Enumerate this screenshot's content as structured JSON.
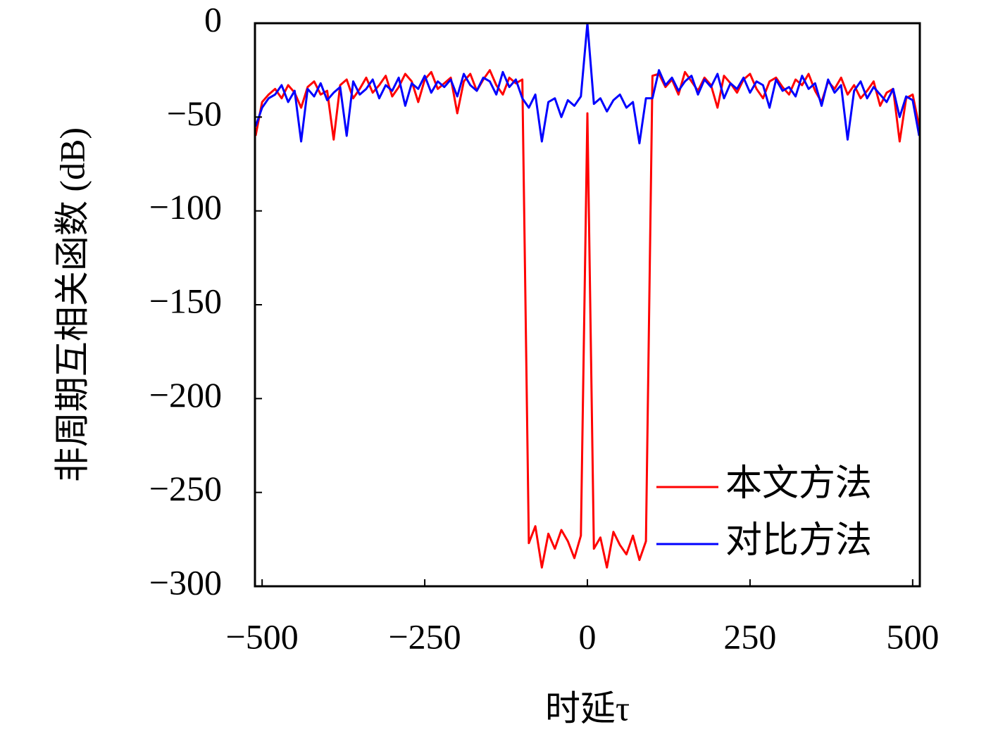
{
  "chart_data": {
    "type": "line",
    "xlabel": "时延τ",
    "ylabel": "非周期互相关函数 (dB)",
    "x": [
      -510,
      -500,
      -490,
      -480,
      -470,
      -460,
      -450,
      -440,
      -430,
      -420,
      -410,
      -400,
      -390,
      -380,
      -370,
      -360,
      -350,
      -340,
      -330,
      -320,
      -310,
      -300,
      -290,
      -280,
      -270,
      -260,
      -250,
      -240,
      -230,
      -220,
      -210,
      -200,
      -190,
      -180,
      -170,
      -160,
      -150,
      -140,
      -130,
      -120,
      -110,
      -100,
      -90,
      -80,
      -70,
      -60,
      -50,
      -40,
      -30,
      -20,
      -10,
      0,
      10,
      20,
      30,
      40,
      50,
      60,
      70,
      80,
      90,
      100,
      110,
      120,
      130,
      140,
      150,
      160,
      170,
      180,
      190,
      200,
      210,
      220,
      230,
      240,
      250,
      260,
      270,
      280,
      290,
      300,
      310,
      320,
      330,
      340,
      350,
      360,
      370,
      380,
      390,
      400,
      410,
      420,
      430,
      440,
      450,
      460,
      470,
      480,
      490,
      500,
      510
    ],
    "series": [
      {
        "name": "本文方法",
        "color": "#ff0000",
        "values": [
          -60,
          -42,
          -38,
          -35,
          -40,
          -33,
          -37,
          -45,
          -34,
          -31,
          -38,
          -36,
          -62,
          -33,
          -30,
          -40,
          -35,
          -29,
          -37,
          -33,
          -28,
          -39,
          -34,
          -27,
          -31,
          -42,
          -30,
          -26,
          -35,
          -32,
          -29,
          -48,
          -31,
          -27,
          -36,
          -30,
          -25,
          -33,
          -38,
          -29,
          -32,
          -30,
          -277,
          -268,
          -290,
          -272,
          -280,
          -270,
          -276,
          -285,
          -273,
          -48,
          -280,
          -274,
          -290,
          -271,
          -278,
          -283,
          -273,
          -286,
          -276,
          -28,
          -27,
          -34,
          -30,
          -38,
          -26,
          -31,
          -36,
          -29,
          -33,
          -45,
          -28,
          -32,
          -37,
          -30,
          -27,
          -35,
          -40,
          -31,
          -29,
          -34,
          -38,
          -30,
          -33,
          -27,
          -36,
          -42,
          -31,
          -35,
          -29,
          -38,
          -33,
          -40,
          -36,
          -31,
          -44,
          -37,
          -35,
          -63,
          -40,
          -38,
          -55
        ]
      },
      {
        "name": "对比方法",
        "color": "#0000ff",
        "values": [
          -55,
          -45,
          -40,
          -38,
          -33,
          -42,
          -36,
          -63,
          -35,
          -39,
          -32,
          -41,
          -37,
          -34,
          -60,
          -31,
          -38,
          -35,
          -30,
          -40,
          -33,
          -36,
          -29,
          -44,
          -32,
          -35,
          -28,
          -37,
          -31,
          -34,
          -30,
          -39,
          -27,
          -33,
          -36,
          -29,
          -31,
          -38,
          -26,
          -34,
          -30,
          -40,
          -45,
          -38,
          -63,
          -42,
          -40,
          -50,
          -41,
          -44,
          -39,
          0,
          -43,
          -40,
          -47,
          -41,
          -38,
          -45,
          -42,
          -64,
          -40,
          -40,
          -25,
          -33,
          -29,
          -36,
          -31,
          -28,
          -38,
          -30,
          -34,
          -27,
          -40,
          -32,
          -35,
          -29,
          -37,
          -31,
          -33,
          -45,
          -30,
          -36,
          -34,
          -39,
          -28,
          -35,
          -32,
          -44,
          -30,
          -37,
          -33,
          -62,
          -36,
          -31,
          -40,
          -34,
          -38,
          -42,
          -35,
          -50,
          -39,
          -41,
          -60
        ]
      }
    ],
    "xlim": [
      -511,
      511
    ],
    "ylim": [
      -300,
      0
    ],
    "xticks": [
      {
        "value": -500,
        "label": "−500"
      },
      {
        "value": -250,
        "label": "−250"
      },
      0,
      250,
      500
    ],
    "yticks": [
      0,
      {
        "value": -50,
        "label": "−50"
      },
      {
        "value": -100,
        "label": "−100"
      },
      {
        "value": -150,
        "label": "−150"
      },
      {
        "value": -200,
        "label": "−200"
      },
      {
        "value": -250,
        "label": "−250"
      },
      {
        "value": -300,
        "label": "−300"
      }
    ],
    "legend": "lower right"
  }
}
